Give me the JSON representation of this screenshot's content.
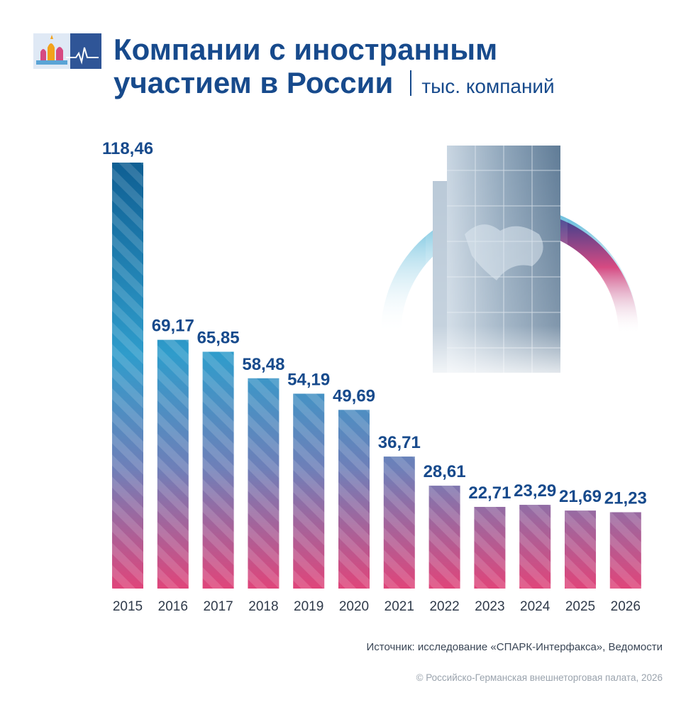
{
  "header": {
    "title_line1": "Компании с иностранным",
    "title_line2": "участием в России",
    "unit": "тыс. компаний"
  },
  "footer": {
    "source": "Источник: исследование «СПАРК-Интерфакса», Ведомости",
    "copyright": "© Российско-Германская внешнеторговая палата, 2026"
  },
  "decor": {
    "logo_icon": "kremlin-pulse-logo-icon",
    "illustration": "skyscraper-world-map-illustration"
  },
  "colors": {
    "title": "#174a8c",
    "bar_top": "#0f6fa6",
    "bar_mid": "#3aa6cf",
    "bar_bottom": "#e0457a",
    "ring_blue": "#2fa5cf",
    "ring_navy": "#2c3f8f",
    "ring_pink": "#d64a82"
  },
  "chart_data": {
    "type": "bar",
    "categories": [
      "2015",
      "2016",
      "2017",
      "2018",
      "2019",
      "2020",
      "2021",
      "2022",
      "2023",
      "2024",
      "2025",
      "2026"
    ],
    "values": [
      118.46,
      69.17,
      65.85,
      58.48,
      54.19,
      49.69,
      36.71,
      28.61,
      22.71,
      23.29,
      21.69,
      21.23
    ],
    "value_labels": [
      "118,46",
      "69,17",
      "65,85",
      "58,48",
      "54,19",
      "49,69",
      "36,71",
      "28,61",
      "22,71",
      "23,29",
      "21,69",
      "21,23"
    ],
    "ylim": [
      0,
      118.46
    ],
    "grid": false,
    "legend": "none"
  }
}
